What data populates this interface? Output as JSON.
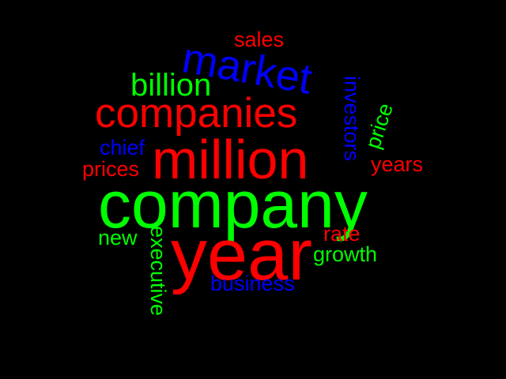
{
  "word_cloud": {
    "background_color": "#000000",
    "palette": {
      "red": "#ff0000",
      "green": "#00ff00",
      "blue": "#0000ff"
    },
    "words": {
      "sales": "sales",
      "market": "market",
      "billion": "billion",
      "companies": "companies",
      "investors": "investors",
      "price": "price",
      "chief": "chief",
      "million": "million",
      "prices": "prices",
      "years": "years",
      "company": "company",
      "new": "new",
      "executive": "executive",
      "year": "year",
      "rate": "rate",
      "growth": "growth",
      "business": "business"
    }
  }
}
